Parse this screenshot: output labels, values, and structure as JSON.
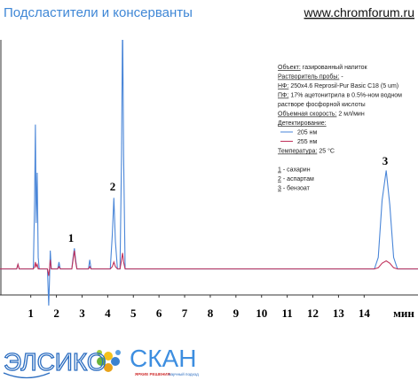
{
  "header": {
    "title": "Подсластители и консерванты",
    "site": "www.chromforum.ru"
  },
  "chart_data": {
    "type": "line",
    "x_label": "мин",
    "x": [
      -0.2,
      0.45,
      0.5,
      0.55,
      1.1,
      1.15,
      1.18,
      1.21,
      1.25,
      1.29,
      1.33,
      1.65,
      1.7,
      1.73,
      1.76,
      1.8,
      2.05,
      2.1,
      2.15,
      2.6,
      2.65,
      2.7,
      2.75,
      2.8,
      3.25,
      3.3,
      3.35,
      4.1,
      4.18,
      4.24,
      4.3,
      4.38,
      4.48,
      4.54,
      4.58,
      4.62,
      4.68,
      14.4,
      14.55,
      14.7,
      14.86,
      15.0,
      15.15,
      15.3,
      16.1
    ],
    "series": [
      {
        "name": "205 нм",
        "color": "#4a86d8",
        "values": [
          0,
          0,
          2,
          0,
          0,
          30,
          63,
          20,
          42,
          5,
          0,
          0,
          -16,
          -5,
          8,
          0,
          0,
          3,
          0,
          0,
          5,
          9,
          4,
          0,
          0,
          4,
          0,
          0,
          15,
          31,
          12,
          0,
          0,
          50,
          110,
          50,
          0,
          0,
          5,
          30,
          43,
          28,
          5,
          0,
          0
        ]
      },
      {
        "name": "255 нм",
        "color": "#c0305a",
        "values": [
          0,
          0,
          2,
          0,
          0,
          1,
          3,
          1,
          2,
          0,
          0,
          0,
          -3,
          0,
          4,
          0,
          0,
          1,
          0,
          0,
          4,
          8,
          3,
          0,
          0,
          1,
          0,
          0,
          1,
          3,
          1,
          0,
          0,
          4,
          7,
          3,
          0,
          0,
          0.5,
          2.5,
          3.5,
          2.5,
          0.5,
          0,
          0
        ]
      }
    ],
    "xlim": [
      -0.2,
      16.1
    ],
    "xticks": [
      1,
      2,
      3,
      4,
      5,
      6,
      7,
      8,
      9,
      10,
      11,
      12,
      13,
      14
    ],
    "ylim": [
      -16,
      100
    ],
    "annotations": [
      "1",
      "2",
      "3"
    ]
  },
  "info": {
    "fields": [
      {
        "label": "Объект:",
        "value": "газированный напиток"
      },
      {
        "label": "Растворитель пробы:",
        "value": "-"
      },
      {
        "label": "НФ:",
        "value": "250x4.6 Reprosil-Pur Basic C18  (5 um)"
      },
      {
        "label": "ПФ:",
        "value": [
          "17% ацетонитрила в 0.5%-ном водном",
          "растворе фосфорной кислоты"
        ]
      },
      {
        "label": "Объемная скорость:",
        "value": "2 мл/мин"
      },
      {
        "label": "Детектирование:",
        "value": ""
      }
    ],
    "temperature": {
      "label": "Температура:",
      "value": "25 °C"
    },
    "peaks": [
      {
        "number": "1",
        "name": "- сахарин"
      },
      {
        "number": "2",
        "name": "- аспартам"
      },
      {
        "number": "3",
        "name": "- бензоат"
      }
    ]
  },
  "logos": {
    "left": "ЭЛСИКО",
    "right": "СКАН",
    "slogan_a": "ЯРКИЕ РЕШЕНИЯ",
    "slogan_b": "научный подход"
  }
}
